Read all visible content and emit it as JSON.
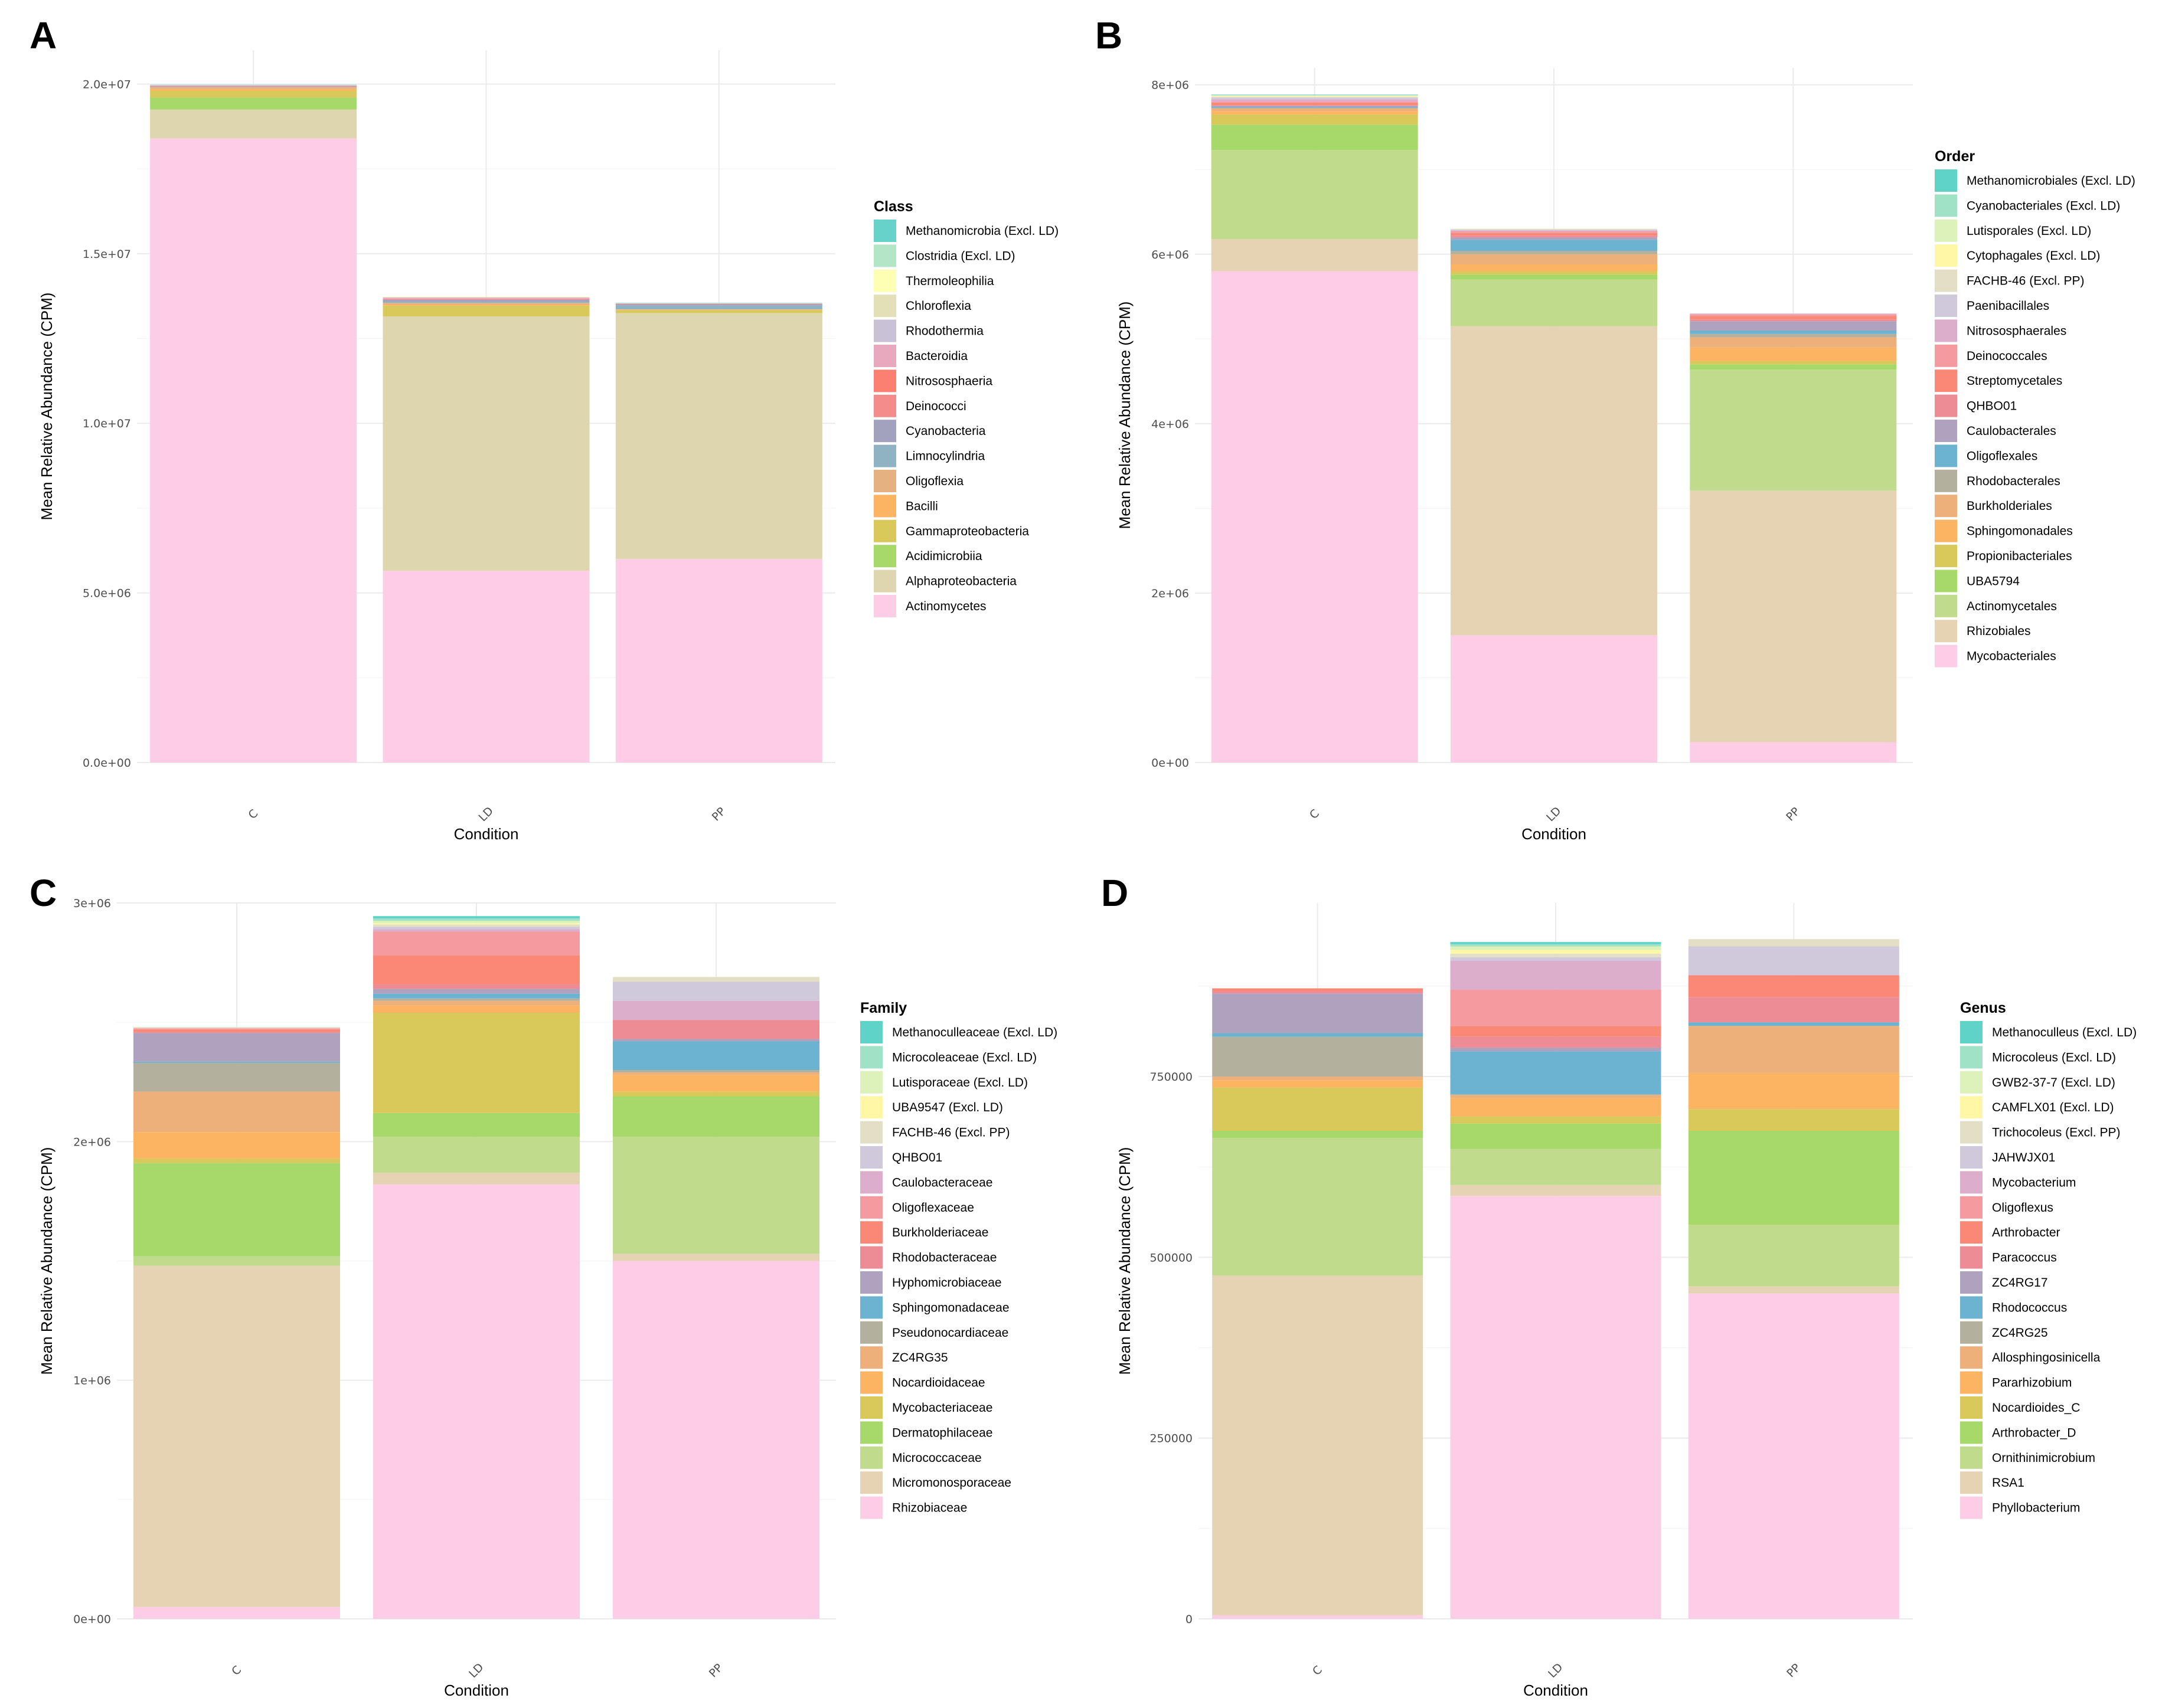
{
  "chart_data": [
    {
      "type": "bar",
      "stacked": true,
      "panel_label": "A",
      "categories": [
        "C",
        "LD",
        "PP"
      ],
      "xlabel": "Condition",
      "ylabel": "Mean Relative Abundance (CPM)",
      "ylim": [
        0,
        21000000
      ],
      "yticks": [
        0,
        5000000,
        10000000,
        15000000,
        20000000
      ],
      "ytick_labels": [
        "0.0e+00",
        "5.0e+06",
        "1.0e+07",
        "1.5e+07",
        "2.0e+07"
      ],
      "legend_title": "Class",
      "legend_position": "right",
      "series": [
        {
          "name": "Actinomycetes",
          "color": "#FCCDE5",
          "values": [
            18400000,
            5650000,
            6000000
          ]
        },
        {
          "name": "Alphaproteobacteria",
          "color": "#DED6AF",
          "values": [
            850000,
            7500000,
            7250000
          ]
        },
        {
          "name": "Acidimicrobiia",
          "color": "#A6D96A",
          "values": [
            350000,
            0,
            0
          ]
        },
        {
          "name": "Gammaproteobacteria",
          "color": "#D9C95A",
          "values": [
            200000,
            320000,
            80000
          ]
        },
        {
          "name": "Bacilli",
          "color": "#FDB462",
          "values": [
            60000,
            40000,
            20000
          ]
        },
        {
          "name": "Oligoflexia",
          "color": "#E5B180",
          "values": [
            40000,
            40000,
            10000
          ]
        },
        {
          "name": "Limnocylindria",
          "color": "#8FB3C2",
          "values": [
            10000,
            30000,
            110000
          ]
        },
        {
          "name": "Cyanobacteria",
          "color": "#A3A2BE",
          "values": [
            10000,
            60000,
            40000
          ]
        },
        {
          "name": "Deinococci",
          "color": "#F58C8C",
          "values": [
            10000,
            20000,
            10000
          ]
        },
        {
          "name": "Nitrososphaeria",
          "color": "#FB8072",
          "values": [
            10000,
            10000,
            0
          ]
        },
        {
          "name": "Bacteroidia",
          "color": "#E8A8BE",
          "values": [
            20000,
            30000,
            10000
          ]
        },
        {
          "name": "Rhodothermia",
          "color": "#C9C1D6",
          "values": [
            5000,
            10000,
            5000
          ]
        },
        {
          "name": "Chloroflexia",
          "color": "#E3E0B8",
          "values": [
            5000,
            10000,
            5000
          ]
        },
        {
          "name": "Thermoleophilia",
          "color": "#FFFFB3",
          "values": [
            3000,
            5000,
            3000
          ]
        },
        {
          "name": "Clostridia (Excl. LD)",
          "color": "#B3E6C6",
          "values": [
            3000,
            0,
            3000
          ]
        },
        {
          "name": "Methanomicrobia (Excl. LD)",
          "color": "#66D2C9",
          "values": [
            3000,
            0,
            3000
          ]
        }
      ]
    },
    {
      "type": "bar",
      "stacked": true,
      "panel_label": "B",
      "categories": [
        "C",
        "LD",
        "PP"
      ],
      "xlabel": "Condition",
      "ylabel": "Mean Relative Abundance (CPM)",
      "ylim": [
        0,
        8200000
      ],
      "yticks": [
        0,
        2000000,
        4000000,
        6000000,
        8000000
      ],
      "ytick_labels": [
        "0e+00",
        "2e+06",
        "4e+06",
        "6e+06",
        "8e+06"
      ],
      "legend_title": "Order",
      "legend_position": "right",
      "series": [
        {
          "name": "Mycobacteriales",
          "color": "#FCCDE5",
          "values": [
            5800000,
            1500000,
            240000
          ]
        },
        {
          "name": "Rhizobiales",
          "color": "#E6D3B3",
          "values": [
            380000,
            3650000,
            2970000
          ]
        },
        {
          "name": "Actinomycetales",
          "color": "#BFDB8B",
          "values": [
            1050000,
            550000,
            1430000
          ]
        },
        {
          "name": "UBA5794",
          "color": "#A6D96A",
          "values": [
            300000,
            60000,
            60000
          ]
        },
        {
          "name": "Propionibacteriales",
          "color": "#D9C95A",
          "values": [
            120000,
            40000,
            40000
          ]
        },
        {
          "name": "Sphingomonadales",
          "color": "#FDB462",
          "values": [
            40000,
            80000,
            160000
          ]
        },
        {
          "name": "Burkholderiales",
          "color": "#EEB07A",
          "values": [
            30000,
            120000,
            120000
          ]
        },
        {
          "name": "Rhodobacterales",
          "color": "#B3B09E",
          "values": [
            10000,
            40000,
            40000
          ]
        },
        {
          "name": "Oligoflexales",
          "color": "#6BB3D1",
          "values": [
            10000,
            130000,
            40000
          ]
        },
        {
          "name": "Caulobacterales",
          "color": "#AEA2BF",
          "values": [
            10000,
            30000,
            110000
          ]
        },
        {
          "name": "QHBO01",
          "color": "#EE8C96",
          "values": [
            10000,
            20000,
            20000
          ]
        },
        {
          "name": "Streptomycetales",
          "color": "#F98877",
          "values": [
            30000,
            30000,
            40000
          ]
        },
        {
          "name": "Deinococcales",
          "color": "#F59A9E",
          "values": [
            10000,
            20000,
            20000
          ]
        },
        {
          "name": "Nitrososphaerales",
          "color": "#DDAECB",
          "values": [
            30000,
            10000,
            10000
          ]
        },
        {
          "name": "Paenibacillales",
          "color": "#D0C8DB",
          "values": [
            20000,
            10000,
            0
          ]
        },
        {
          "name": "FACHB-46 (Excl. PP)",
          "color": "#E3DFC5",
          "values": [
            10000,
            10000,
            0
          ]
        },
        {
          "name": "Cytophagales (Excl. LD)",
          "color": "#FFF7A6",
          "values": [
            10000,
            0,
            0
          ]
        },
        {
          "name": "Lutisporales (Excl. LD)",
          "color": "#DDF1BB",
          "values": [
            5000,
            0,
            0
          ]
        },
        {
          "name": "Cyanobacteriales (Excl. LD)",
          "color": "#9FE2C5",
          "values": [
            5000,
            0,
            0
          ]
        },
        {
          "name": "Methanomicrobiales (Excl. LD)",
          "color": "#5FD3C7",
          "values": [
            5000,
            0,
            0
          ]
        }
      ]
    },
    {
      "type": "bar",
      "stacked": true,
      "panel_label": "C",
      "categories": [
        "C",
        "LD",
        "PP"
      ],
      "xlabel": "Condition",
      "ylabel": "Mean Relative Abundance (CPM)",
      "ylim": [
        0,
        3000000
      ],
      "yticks": [
        0,
        1000000,
        2000000,
        3000000
      ],
      "ytick_labels": [
        "0e+00",
        "1e+06",
        "2e+06",
        "3e+06"
      ],
      "legend_title": "Family",
      "legend_position": "right",
      "series": [
        {
          "name": "Rhizobiaceae",
          "color": "#FCCDE5",
          "values": [
            50000,
            1820000,
            1500000
          ]
        },
        {
          "name": "Micromonosporaceae",
          "color": "#E6D3B3",
          "values": [
            1430000,
            50000,
            30000
          ]
        },
        {
          "name": "Micrococcaceae",
          "color": "#BFDB8B",
          "values": [
            40000,
            150000,
            490000
          ]
        },
        {
          "name": "Dermatophilaceae",
          "color": "#A6D96A",
          "values": [
            390000,
            100000,
            170000
          ]
        },
        {
          "name": "Mycobacteriaceae",
          "color": "#D9C95A",
          "values": [
            20000,
            420000,
            20000
          ]
        },
        {
          "name": "Nocardioidaceae",
          "color": "#FDB462",
          "values": [
            110000,
            30000,
            70000
          ]
        },
        {
          "name": "ZC4RG35",
          "color": "#EEB07A",
          "values": [
            170000,
            20000,
            10000
          ]
        },
        {
          "name": "Pseudonocardiaceae",
          "color": "#B3B09E",
          "values": [
            120000,
            10000,
            10000
          ]
        },
        {
          "name": "Sphingomonadaceae",
          "color": "#6BB3D1",
          "values": [
            5000,
            20000,
            120000
          ]
        },
        {
          "name": "Hyphomicrobiaceae",
          "color": "#AEA2BF",
          "values": [
            120000,
            20000,
            10000
          ]
        },
        {
          "name": "Rhodobacteraceae",
          "color": "#EE8C96",
          "values": [
            5000,
            20000,
            80000
          ]
        },
        {
          "name": "Burkholderiaceae",
          "color": "#F98877",
          "values": [
            10000,
            120000,
            0
          ]
        },
        {
          "name": "Oligoflexaceae",
          "color": "#F59A9E",
          "values": [
            5000,
            100000,
            0
          ]
        },
        {
          "name": "Caulobacteraceae",
          "color": "#DDAECB",
          "values": [
            0,
            10000,
            80000
          ]
        },
        {
          "name": "QHBO01",
          "color": "#D0C8DB",
          "values": [
            0,
            10000,
            80000
          ]
        },
        {
          "name": "FACHB-46 (Excl. PP)",
          "color": "#E3DFC5",
          "values": [
            5000,
            10000,
            20000
          ]
        },
        {
          "name": "UBA9547 (Excl. LD)",
          "color": "#FFF7A6",
          "values": [
            0,
            5000,
            0
          ]
        },
        {
          "name": "Lutisporaceae (Excl. LD)",
          "color": "#DDF1BB",
          "values": [
            0,
            10000,
            0
          ]
        },
        {
          "name": "Microcoleaceae (Excl. LD)",
          "color": "#9FE2C5",
          "values": [
            0,
            10000,
            0
          ]
        },
        {
          "name": "Methanoculleaceae (Excl. LD)",
          "color": "#5FD3C7",
          "values": [
            0,
            10000,
            0
          ]
        }
      ]
    },
    {
      "type": "bar",
      "stacked": true,
      "panel_label": "D",
      "categories": [
        "C",
        "LD",
        "PP"
      ],
      "xlabel": "Condition",
      "ylabel": "Mean Relative Abundance (CPM)",
      "ylim": [
        0,
        990000
      ],
      "yticks": [
        0,
        250000,
        500000,
        750000
      ],
      "ytick_labels": [
        "0",
        "250000",
        "500000",
        "750000"
      ],
      "legend_title": "Genus",
      "legend_position": "right",
      "series": [
        {
          "name": "Phyllobacterium",
          "color": "#FCCDE5",
          "values": [
            5000,
            585000,
            450000
          ]
        },
        {
          "name": "RSA1",
          "color": "#E6D3B3",
          "values": [
            470000,
            15000,
            10000
          ]
        },
        {
          "name": "Ornithinimicrobium",
          "color": "#BFDB8B",
          "values": [
            190000,
            50000,
            85000
          ]
        },
        {
          "name": "Arthrobacter_D",
          "color": "#A6D96A",
          "values": [
            10000,
            35000,
            130000
          ]
        },
        {
          "name": "Nocardioides_C",
          "color": "#D9C95A",
          "values": [
            60000,
            10000,
            30000
          ]
        },
        {
          "name": "Pararhizobium",
          "color": "#FDB462",
          "values": [
            10000,
            25000,
            50000
          ]
        },
        {
          "name": "Allosphingosinicella",
          "color": "#EEB07A",
          "values": [
            5000,
            5000,
            65000
          ]
        },
        {
          "name": "ZC4RG25",
          "color": "#B3B09E",
          "values": [
            55000,
            0,
            0
          ]
        },
        {
          "name": "Rhodococcus",
          "color": "#6BB3D1",
          "values": [
            5000,
            60000,
            5000
          ]
        },
        {
          "name": "ZC4RG17",
          "color": "#AEA2BF",
          "values": [
            55000,
            5000,
            0
          ]
        },
        {
          "name": "Paracoccus",
          "color": "#EE8C96",
          "values": [
            3000,
            15000,
            35000
          ]
        },
        {
          "name": "Arthrobacter",
          "color": "#F98877",
          "values": [
            4000,
            15000,
            30000
          ]
        },
        {
          "name": "Oligoflexus",
          "color": "#F59A9E",
          "values": [
            0,
            50000,
            0
          ]
        },
        {
          "name": "Mycobacterium",
          "color": "#DDAECB",
          "values": [
            0,
            40000,
            0
          ]
        },
        {
          "name": "JAHWJX01",
          "color": "#D0C8DB",
          "values": [
            0,
            5000,
            40000
          ]
        },
        {
          "name": "Trichocoleus (Excl. PP)",
          "color": "#E3DFC5",
          "values": [
            0,
            5000,
            10000
          ]
        },
        {
          "name": "CAMFLX01 (Excl. LD)",
          "color": "#FFF7A6",
          "values": [
            0,
            5000,
            0
          ]
        },
        {
          "name": "GWB2-37-7 (Excl. LD)",
          "color": "#DDF1BB",
          "values": [
            0,
            5000,
            0
          ]
        },
        {
          "name": "Microcoleus (Excl. LD)",
          "color": "#9FE2C5",
          "values": [
            0,
            3000,
            0
          ]
        },
        {
          "name": "Methanoculleus (Excl. LD)",
          "color": "#5FD3C7",
          "values": [
            0,
            3000,
            0
          ]
        }
      ]
    }
  ]
}
